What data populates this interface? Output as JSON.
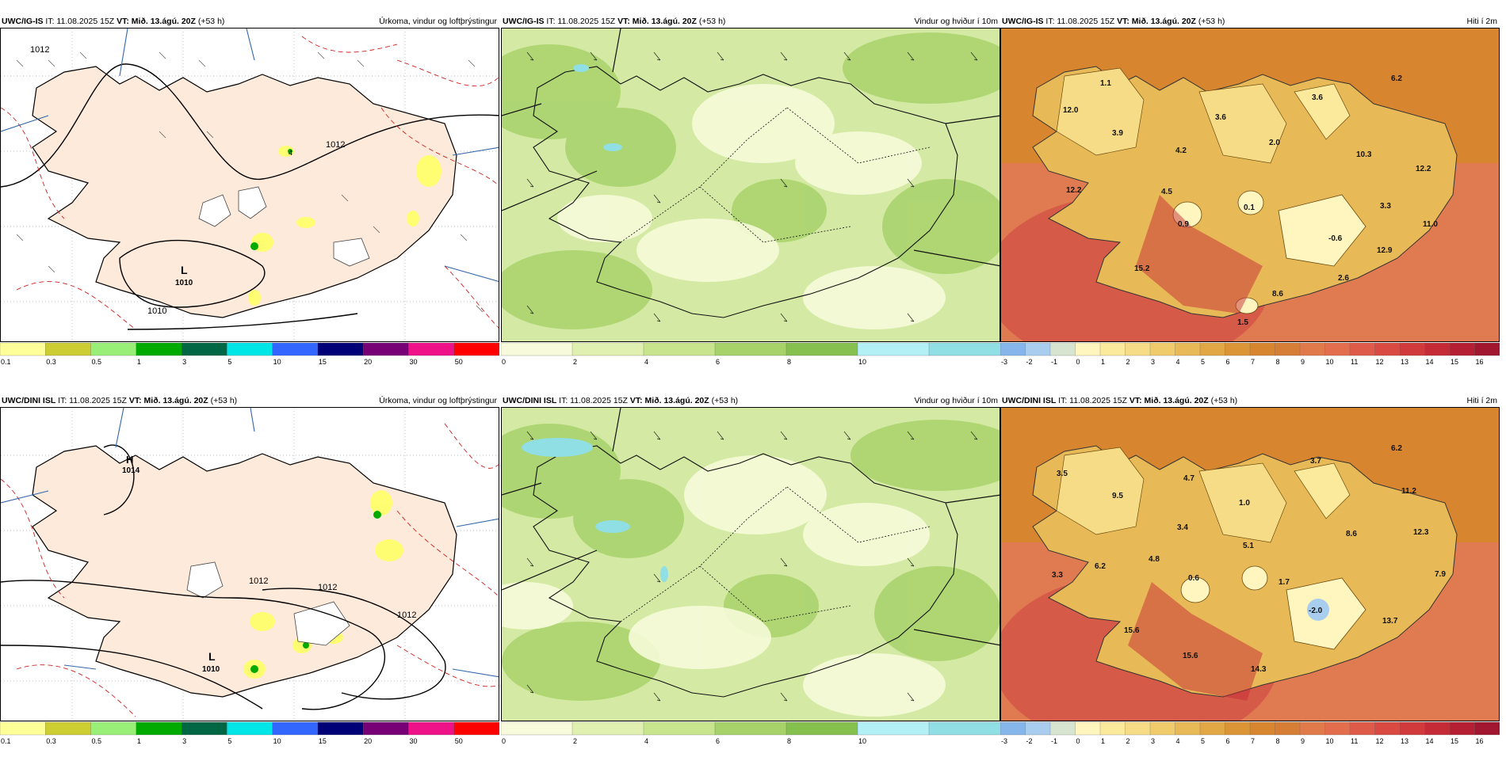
{
  "rows": [
    {
      "model": "UWC/IG-IS",
      "panels": [
        {
          "init": "IT: 11.08.2025 15Z",
          "valid": "VT: Mið. 13.ágú. 20Z",
          "lead": "(+53 h)",
          "title": "Úrkoma, vindur og loftþrýstingur",
          "labels": [
            {
              "t": "1012"
            },
            {
              "t": "L"
            },
            {
              "t": "1010"
            },
            {
              "t": "1012"
            },
            {
              "t": "1010"
            },
            {
              "t": "4"
            }
          ]
        },
        {
          "init": "IT: 11.08.2025 15Z",
          "valid": "VT: Mið. 13.ágú. 20Z",
          "lead": "(+53 h)",
          "title": "Vindur og hviður í 10m",
          "labels": []
        },
        {
          "init": "IT: 11.08.2025 15Z",
          "valid": "VT: Mið. 13.ágú. 20Z",
          "lead": "(+53 h)",
          "title": "Hiti í 2m",
          "labels": [
            {
              "t": "12.0"
            },
            {
              "t": "1.1"
            },
            {
              "t": "3.9"
            },
            {
              "t": "4.2"
            },
            {
              "t": "3.6"
            },
            {
              "t": "2.0"
            },
            {
              "t": "3.6"
            },
            {
              "t": "6.2"
            },
            {
              "t": "10.3"
            },
            {
              "t": "12.2"
            },
            {
              "t": "12.2"
            },
            {
              "t": "4.5"
            },
            {
              "t": "0.9"
            },
            {
              "t": "0.1"
            },
            {
              "t": "-0.6"
            },
            {
              "t": "3.3"
            },
            {
              "t": "11.0"
            },
            {
              "t": "12.9"
            },
            {
              "t": "15.2"
            },
            {
              "t": "8.6"
            },
            {
              "t": "2.6"
            },
            {
              "t": "1.5"
            }
          ]
        }
      ]
    },
    {
      "model": "UWC/DINI ISL",
      "panels": [
        {
          "init": "IT: 11.08.2025 15Z",
          "valid": "VT: Mið. 13.ágú. 20Z",
          "lead": "(+53 h)",
          "title": "Úrkoma, vindur og loftþrýstingur",
          "labels": [
            {
              "t": "H"
            },
            {
              "t": "1014"
            },
            {
              "t": "1012"
            },
            {
              "t": "1012"
            },
            {
              "t": "1012"
            },
            {
              "t": "L"
            },
            {
              "t": "1010"
            }
          ]
        },
        {
          "init": "IT: 11.08.2025 15Z",
          "valid": "VT: Mið. 13.ágú. 20Z",
          "lead": "(+53 h)",
          "title": "Vindur og hviður í 10m",
          "labels": []
        },
        {
          "init": "IT: 11.08.2025 15Z",
          "valid": "VT: Mið. 13.ágú. 20Z",
          "lead": "(+53 h)",
          "title": "Hiti í 2m",
          "labels": [
            {
              "t": "3.5"
            },
            {
              "t": "9.5"
            },
            {
              "t": "4.7"
            },
            {
              "t": "1.0"
            },
            {
              "t": "3.7"
            },
            {
              "t": "6.2"
            },
            {
              "t": "11.2"
            },
            {
              "t": "3.4"
            },
            {
              "t": "5.1"
            },
            {
              "t": "8.6"
            },
            {
              "t": "12.3"
            },
            {
              "t": "3.3"
            },
            {
              "t": "6.2"
            },
            {
              "t": "4.8"
            },
            {
              "t": "0.6"
            },
            {
              "t": "1.7"
            },
            {
              "t": "-2.0"
            },
            {
              "t": "7.9"
            },
            {
              "t": "13.7"
            },
            {
              "t": "15.6"
            },
            {
              "t": "15.6"
            },
            {
              "t": "14.3"
            }
          ]
        }
      ]
    }
  ],
  "scales": {
    "precip": {
      "ticks": [
        "0.1",
        "0.3",
        "0.5",
        "1",
        "3",
        "5",
        "10",
        "15",
        "20",
        "30",
        "50"
      ],
      "colors": [
        "#ffff99",
        "#cccc33",
        "#99ee77",
        "#00aa00",
        "#006644",
        "#00e5e5",
        "#3366ff",
        "#000077",
        "#770077",
        "#ee1188",
        "#ff0000"
      ]
    },
    "wind": {
      "ticks": [
        "0",
        "2",
        "4",
        "6",
        "8",
        "10"
      ],
      "colors": [
        "#f7fbdc",
        "#e0f0b0",
        "#c8e48c",
        "#a6d269",
        "#86c04f",
        "#b2f0f5",
        "#8fdfe5"
      ]
    },
    "temp": {
      "ticks": [
        "-3",
        "-2",
        "-1",
        "0",
        "1",
        "2",
        "3",
        "4",
        "5",
        "6",
        "7",
        "8",
        "9",
        "10",
        "11",
        "12",
        "13",
        "14",
        "15",
        "16"
      ],
      "colors": [
        "#86b5ea",
        "#a9cdee",
        "#d7e5d0",
        "#fff6bf",
        "#fbe99c",
        "#f6dc86",
        "#efcb6c",
        "#e8b957",
        "#e2a745",
        "#dc9536",
        "#d8852f",
        "#d67e35",
        "#e17a4a",
        "#e26e4d",
        "#df5b49",
        "#d94a43",
        "#d13a3c",
        "#c52b37",
        "#b51f34",
        "#a0172f"
      ]
    }
  }
}
